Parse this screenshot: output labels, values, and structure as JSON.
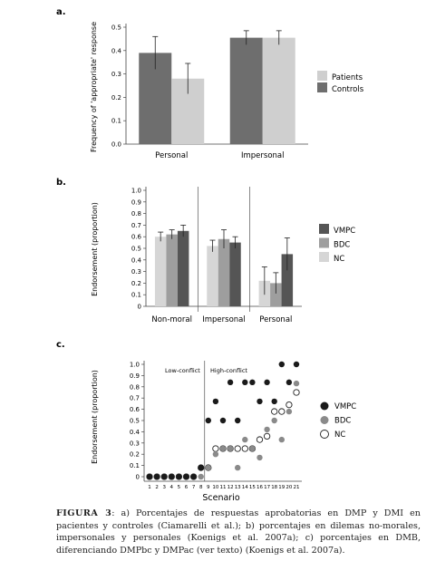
{
  "chart_data": [
    {
      "type": "bar",
      "panel_label": "a.",
      "title": "",
      "xlabel": "",
      "ylabel": "Frequency of 'appropriate' response",
      "ylim": [
        0,
        0.5
      ],
      "yticks": [
        "0.0",
        "0.1",
        "0.2",
        "0.3",
        "0.4",
        "0.5"
      ],
      "categories": [
        "Personal",
        "Impersonal"
      ],
      "series": [
        {
          "name": "Controls",
          "color": "#6e6e6e",
          "values": [
            0.39,
            0.455
          ],
          "errors": [
            0.07,
            0.03
          ]
        },
        {
          "name": "Patients",
          "color": "#cfcfcf",
          "values": [
            0.28,
            0.455
          ],
          "errors": [
            0.065,
            0.03
          ]
        }
      ],
      "legend_order": [
        "Patients",
        "Controls"
      ],
      "legend": "right",
      "grid": false
    },
    {
      "type": "bar",
      "panel_label": "b.",
      "title": "",
      "xlabel": "",
      "ylabel": "Endorsement (proportion)",
      "ylim": [
        0,
        1.0
      ],
      "yticks": [
        "0",
        "0.1",
        "0.2",
        "0.3",
        "0.4",
        "0.5",
        "0.6",
        "0.7",
        "0.8",
        "0.9",
        "1.0"
      ],
      "categories": [
        "Non-moral",
        "Impersonal",
        "Personal"
      ],
      "series": [
        {
          "name": "NC",
          "color": "#d6d6d6",
          "values": [
            0.6,
            0.52,
            0.22
          ],
          "errors": [
            0.04,
            0.05,
            0.12
          ]
        },
        {
          "name": "BDC",
          "color": "#9e9e9e",
          "values": [
            0.62,
            0.58,
            0.2
          ],
          "errors": [
            0.04,
            0.08,
            0.09
          ]
        },
        {
          "name": "VMPC",
          "color": "#555555",
          "values": [
            0.65,
            0.55,
            0.45
          ],
          "errors": [
            0.05,
            0.05,
            0.14
          ]
        }
      ],
      "legend_order": [
        "VMPC",
        "BDC",
        "NC"
      ],
      "legend": "right",
      "grid": false
    },
    {
      "type": "scatter",
      "panel_label": "c.",
      "title": "",
      "xlabel": "Scenario",
      "ylabel": "Endorsement (proportion)",
      "xlim": [
        1,
        21
      ],
      "ylim": [
        0,
        1.0
      ],
      "xticks": [
        "1",
        "2",
        "3",
        "4",
        "5",
        "6",
        "7",
        "8",
        "9",
        "10",
        "11",
        "12",
        "13",
        "14",
        "15",
        "16",
        "17",
        "18",
        "19",
        "20",
        "21"
      ],
      "yticks": [
        "0",
        "0.1",
        "0.2",
        "0.3",
        "0.4",
        "0.5",
        "0.6",
        "0.7",
        "0.8",
        "0.9",
        "1.0"
      ],
      "annotations": {
        "left": "Low-conflict",
        "right": "High-conflict"
      },
      "divider_x": 8.5,
      "series": [
        {
          "name": "VMPC",
          "color": "#1a1a1a",
          "points": [
            [
              1,
              0
            ],
            [
              2,
              0
            ],
            [
              3,
              0
            ],
            [
              4,
              0
            ],
            [
              5,
              0
            ],
            [
              6,
              0
            ],
            [
              7,
              0
            ],
            [
              8,
              0.08
            ],
            [
              9,
              0.5
            ],
            [
              10,
              0.67
            ],
            [
              11,
              0.5
            ],
            [
              12,
              0.84
            ],
            [
              13,
              0.5
            ],
            [
              14,
              0.84
            ],
            [
              15,
              0.84
            ],
            [
              16,
              0.67
            ],
            [
              17,
              0.84
            ],
            [
              18,
              0.67
            ],
            [
              19,
              1.0
            ],
            [
              20,
              0.84
            ],
            [
              21,
              1.0
            ]
          ]
        },
        {
          "name": "BDC",
          "color": "#8a8a8a",
          "points": [
            [
              1,
              0
            ],
            [
              2,
              0
            ],
            [
              3,
              0
            ],
            [
              4,
              0
            ],
            [
              5,
              0
            ],
            [
              6,
              0
            ],
            [
              7,
              0
            ],
            [
              8,
              0
            ],
            [
              9,
              0.08
            ],
            [
              10,
              0.2
            ],
            [
              11,
              0.25
            ],
            [
              12,
              0.25
            ],
            [
              13,
              0.08
            ],
            [
              14,
              0.33
            ],
            [
              15,
              0.25
            ],
            [
              16,
              0.17
            ],
            [
              17,
              0.42
            ],
            [
              18,
              0.5
            ],
            [
              19,
              0.33
            ],
            [
              20,
              0.58
            ],
            [
              21,
              0.83
            ]
          ]
        },
        {
          "name": "NC",
          "color": "#ffffff",
          "points": [
            [
              1,
              0
            ],
            [
              2,
              0
            ],
            [
              3,
              0
            ],
            [
              4,
              0
            ],
            [
              5,
              0
            ],
            [
              6,
              0
            ],
            [
              7,
              0
            ],
            [
              8,
              0.08
            ],
            [
              9,
              0.08
            ],
            [
              10,
              0.25
            ],
            [
              11,
              0.25
            ],
            [
              12,
              0.25
            ],
            [
              13,
              0.25
            ],
            [
              14,
              0.25
            ],
            [
              15,
              0.25
            ],
            [
              16,
              0.33
            ],
            [
              17,
              0.36
            ],
            [
              18,
              0.58
            ],
            [
              19,
              0.58
            ],
            [
              20,
              0.64
            ],
            [
              21,
              0.75
            ]
          ]
        }
      ],
      "legend_order": [
        "VMPC",
        "BDC",
        "NC"
      ],
      "legend": "right",
      "grid": false
    }
  ],
  "caption": {
    "lead": "FIGURA 3",
    "text": ": a) Porcentajes de respuestas aprobatorias en DMP y DMI en pacientes y controles (Ciamarelli et al.); b) porcentajes en dilemas no-morales, impersonales y personales (Koenigs et al. 2007a); c) porcentajes en DMB, diferenciando DMPbc y DMPac (ver texto) (Koenigs et al. 2007a)."
  }
}
